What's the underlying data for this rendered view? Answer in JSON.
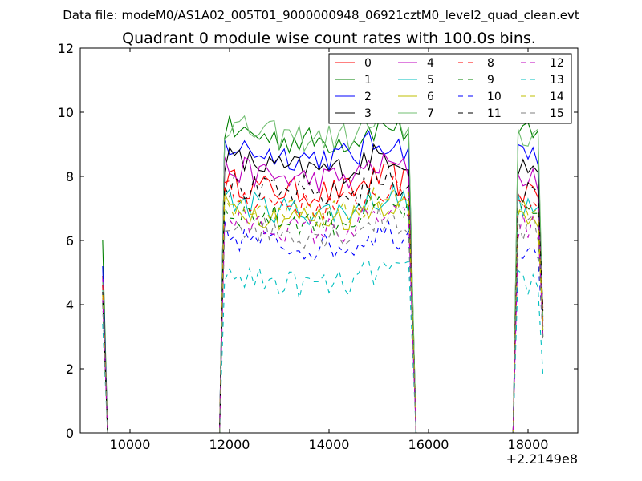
{
  "chart_data": {
    "type": "line",
    "suptitle": "Data file: modeM0/AS1A02_005T01_9000000948_06921cztM0_level2_quad_clean.evt",
    "title": "Quadrant 0 module wise count rates with 100.0s bins.",
    "xlabel": "",
    "ylabel": "",
    "x_offset_label": "+2.2149e8",
    "xlim": [
      9000,
      19000
    ],
    "ylim": [
      0,
      12
    ],
    "x_ticks": [
      10000,
      12000,
      14000,
      16000,
      18000
    ],
    "x_tick_labels": [
      "10000",
      "12000",
      "14000",
      "16000",
      "18000"
    ],
    "y_ticks": [
      0,
      2,
      4,
      6,
      8,
      10,
      12
    ],
    "y_tick_labels": [
      "0",
      "2",
      "4",
      "6",
      "8",
      "10",
      "12"
    ],
    "legend_position": "top-right",
    "legend_columns": 4,
    "grid": false,
    "segments": [
      {
        "start": 9450,
        "end": 9550
      },
      {
        "start": 11800,
        "end": 15750
      },
      {
        "start": 17700,
        "end": 18300
      }
    ],
    "series": [
      {
        "name": "0",
        "color": "#ff0000",
        "dash": "solid",
        "level": 7.9,
        "start_value": 4.9,
        "end_value": 3.9
      },
      {
        "name": "1",
        "color": "#008000",
        "dash": "solid",
        "level": 9.5,
        "start_value": 6.0,
        "end_value": 3.0
      },
      {
        "name": "2",
        "color": "#0000ff",
        "dash": "solid",
        "level": 9.0,
        "start_value": 5.2,
        "end_value": 3.5
      },
      {
        "name": "3",
        "color": "#000000",
        "dash": "solid",
        "level": 8.6,
        "start_value": 4.6,
        "end_value": 3.6
      },
      {
        "name": "4",
        "color": "#bf00bf",
        "dash": "solid",
        "level": 8.3,
        "start_value": 4.8,
        "end_value": 3.3
      },
      {
        "name": "5",
        "color": "#00bfbf",
        "dash": "solid",
        "level": 7.3,
        "start_value": 4.5,
        "end_value": 3.2
      },
      {
        "name": "6",
        "color": "#bfbf00",
        "dash": "solid",
        "level": 7.1,
        "start_value": 4.3,
        "end_value": 3.3
      },
      {
        "name": "7",
        "color": "#72bf72",
        "dash": "solid",
        "level": 9.6,
        "start_value": 4.7,
        "end_value": 3.5
      },
      {
        "name": "8",
        "color": "#ff0000",
        "dash": "dashed",
        "level": 7.5,
        "start_value": 4.6,
        "end_value": 3.4
      },
      {
        "name": "9",
        "color": "#008000",
        "dash": "dashed",
        "level": 7.0,
        "start_value": 4.1,
        "end_value": 3.0
      },
      {
        "name": "10",
        "color": "#0000ff",
        "dash": "dashed",
        "level": 6.2,
        "start_value": 4.0,
        "end_value": 3.1
      },
      {
        "name": "11",
        "color": "#000000",
        "dash": "dashed",
        "level": 7.8,
        "start_value": 4.4,
        "end_value": 3.8
      },
      {
        "name": "12",
        "color": "#bf00bf",
        "dash": "dashed",
        "level": 6.7,
        "start_value": 4.2,
        "end_value": 3.0
      },
      {
        "name": "13",
        "color": "#00bfbf",
        "dash": "dashed",
        "level": 5.0,
        "start_value": 3.4,
        "end_value": 1.8
      },
      {
        "name": "14",
        "color": "#bfbf00",
        "dash": "dashed",
        "level": 7.2,
        "start_value": 4.3,
        "end_value": 3.2
      },
      {
        "name": "15",
        "color": "#7f7f7f",
        "dash": "dashed",
        "level": 6.6,
        "start_value": 4.0,
        "end_value": 2.9
      }
    ]
  }
}
